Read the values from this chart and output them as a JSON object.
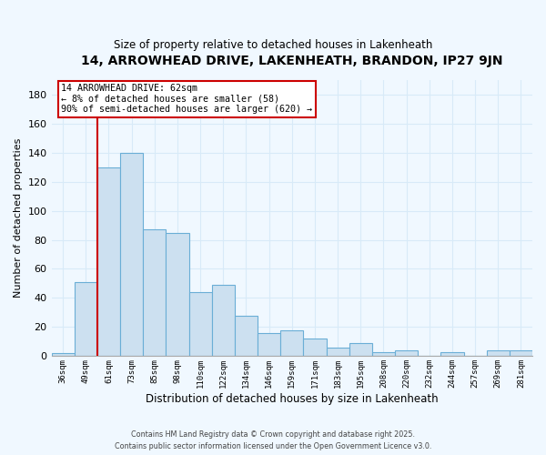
{
  "title": "14, ARROWHEAD DRIVE, LAKENHEATH, BRANDON, IP27 9JN",
  "subtitle": "Size of property relative to detached houses in Lakenheath",
  "xlabel": "Distribution of detached houses by size in Lakenheath",
  "ylabel": "Number of detached properties",
  "categories": [
    "36sqm",
    "49sqm",
    "61sqm",
    "73sqm",
    "85sqm",
    "98sqm",
    "110sqm",
    "122sqm",
    "134sqm",
    "146sqm",
    "159sqm",
    "171sqm",
    "183sqm",
    "195sqm",
    "208sqm",
    "220sqm",
    "232sqm",
    "244sqm",
    "257sqm",
    "269sqm",
    "281sqm"
  ],
  "values": [
    2,
    51,
    130,
    140,
    87,
    85,
    44,
    49,
    28,
    16,
    18,
    12,
    6,
    9,
    3,
    4,
    0,
    3,
    0,
    4,
    4
  ],
  "bar_color": "#cce0f0",
  "bar_edge_color": "#6aaed6",
  "highlight_line_color": "#cc0000",
  "highlight_bin_index": 2,
  "ylim": [
    0,
    190
  ],
  "yticks": [
    0,
    20,
    40,
    60,
    80,
    100,
    120,
    140,
    160,
    180
  ],
  "annotation_title": "14 ARROWHEAD DRIVE: 62sqm",
  "annotation_line1": "← 8% of detached houses are smaller (58)",
  "annotation_line2": "90% of semi-detached houses are larger (620) →",
  "annotation_box_color": "#ffffff",
  "annotation_box_edge": "#cc0000",
  "background_color": "#f0f8ff",
  "grid_color": "#d8eaf8",
  "footer1": "Contains HM Land Registry data © Crown copyright and database right 2025.",
  "footer2": "Contains public sector information licensed under the Open Government Licence v3.0.",
  "title_fontsize": 10,
  "subtitle_fontsize": 8.5,
  "ylabel_fontsize": 8,
  "xlabel_fontsize": 8.5
}
